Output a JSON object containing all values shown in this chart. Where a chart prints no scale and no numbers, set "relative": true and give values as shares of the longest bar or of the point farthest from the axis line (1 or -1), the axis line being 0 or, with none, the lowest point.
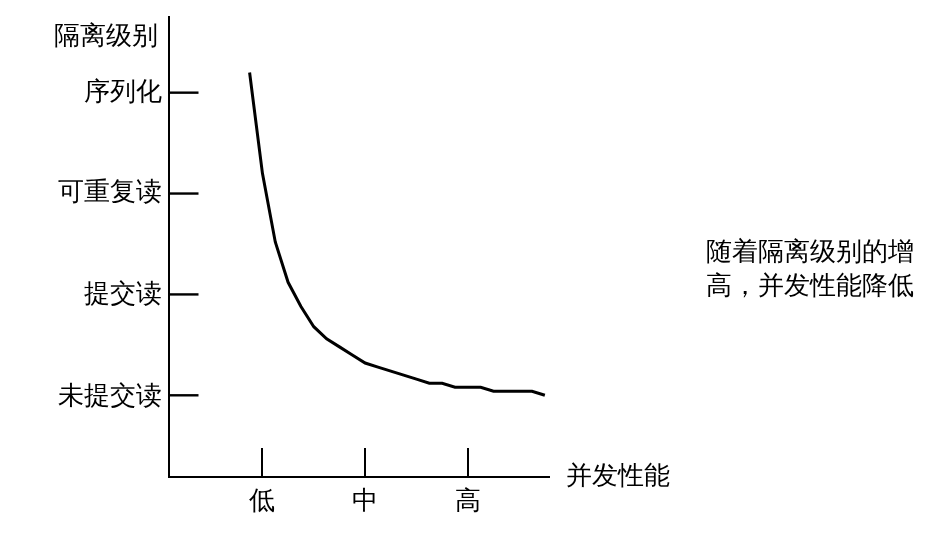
{
  "chart_data": {
    "type": "line",
    "relative": true,
    "xlabel": "并发性能",
    "ylabel": "隔离级别",
    "categories": [
      null,
      "低",
      null,
      null,
      null,
      null,
      null,
      null,
      null,
      "中",
      null,
      null,
      null,
      null,
      null,
      null,
      null,
      "高",
      null,
      null,
      null,
      null,
      null,
      null
    ],
    "series": [
      {
        "color": "#000000",
        "values": [
          1.0,
          0.75,
          0.58,
          0.48,
          0.42,
          0.37,
          0.34,
          0.32,
          0.3,
          0.28,
          0.27,
          0.26,
          0.25,
          0.24,
          0.23,
          0.23,
          0.22,
          0.22,
          0.22,
          0.21,
          0.21,
          0.21,
          0.21,
          0.2
        ]
      }
    ],
    "annotations": [
      "序列化",
      "可重复读",
      "提交读",
      "未提交读",
      "随着隔离级别的增高，并发性能降低"
    ],
    "marker": "none",
    "line_style": "solid"
  }
}
